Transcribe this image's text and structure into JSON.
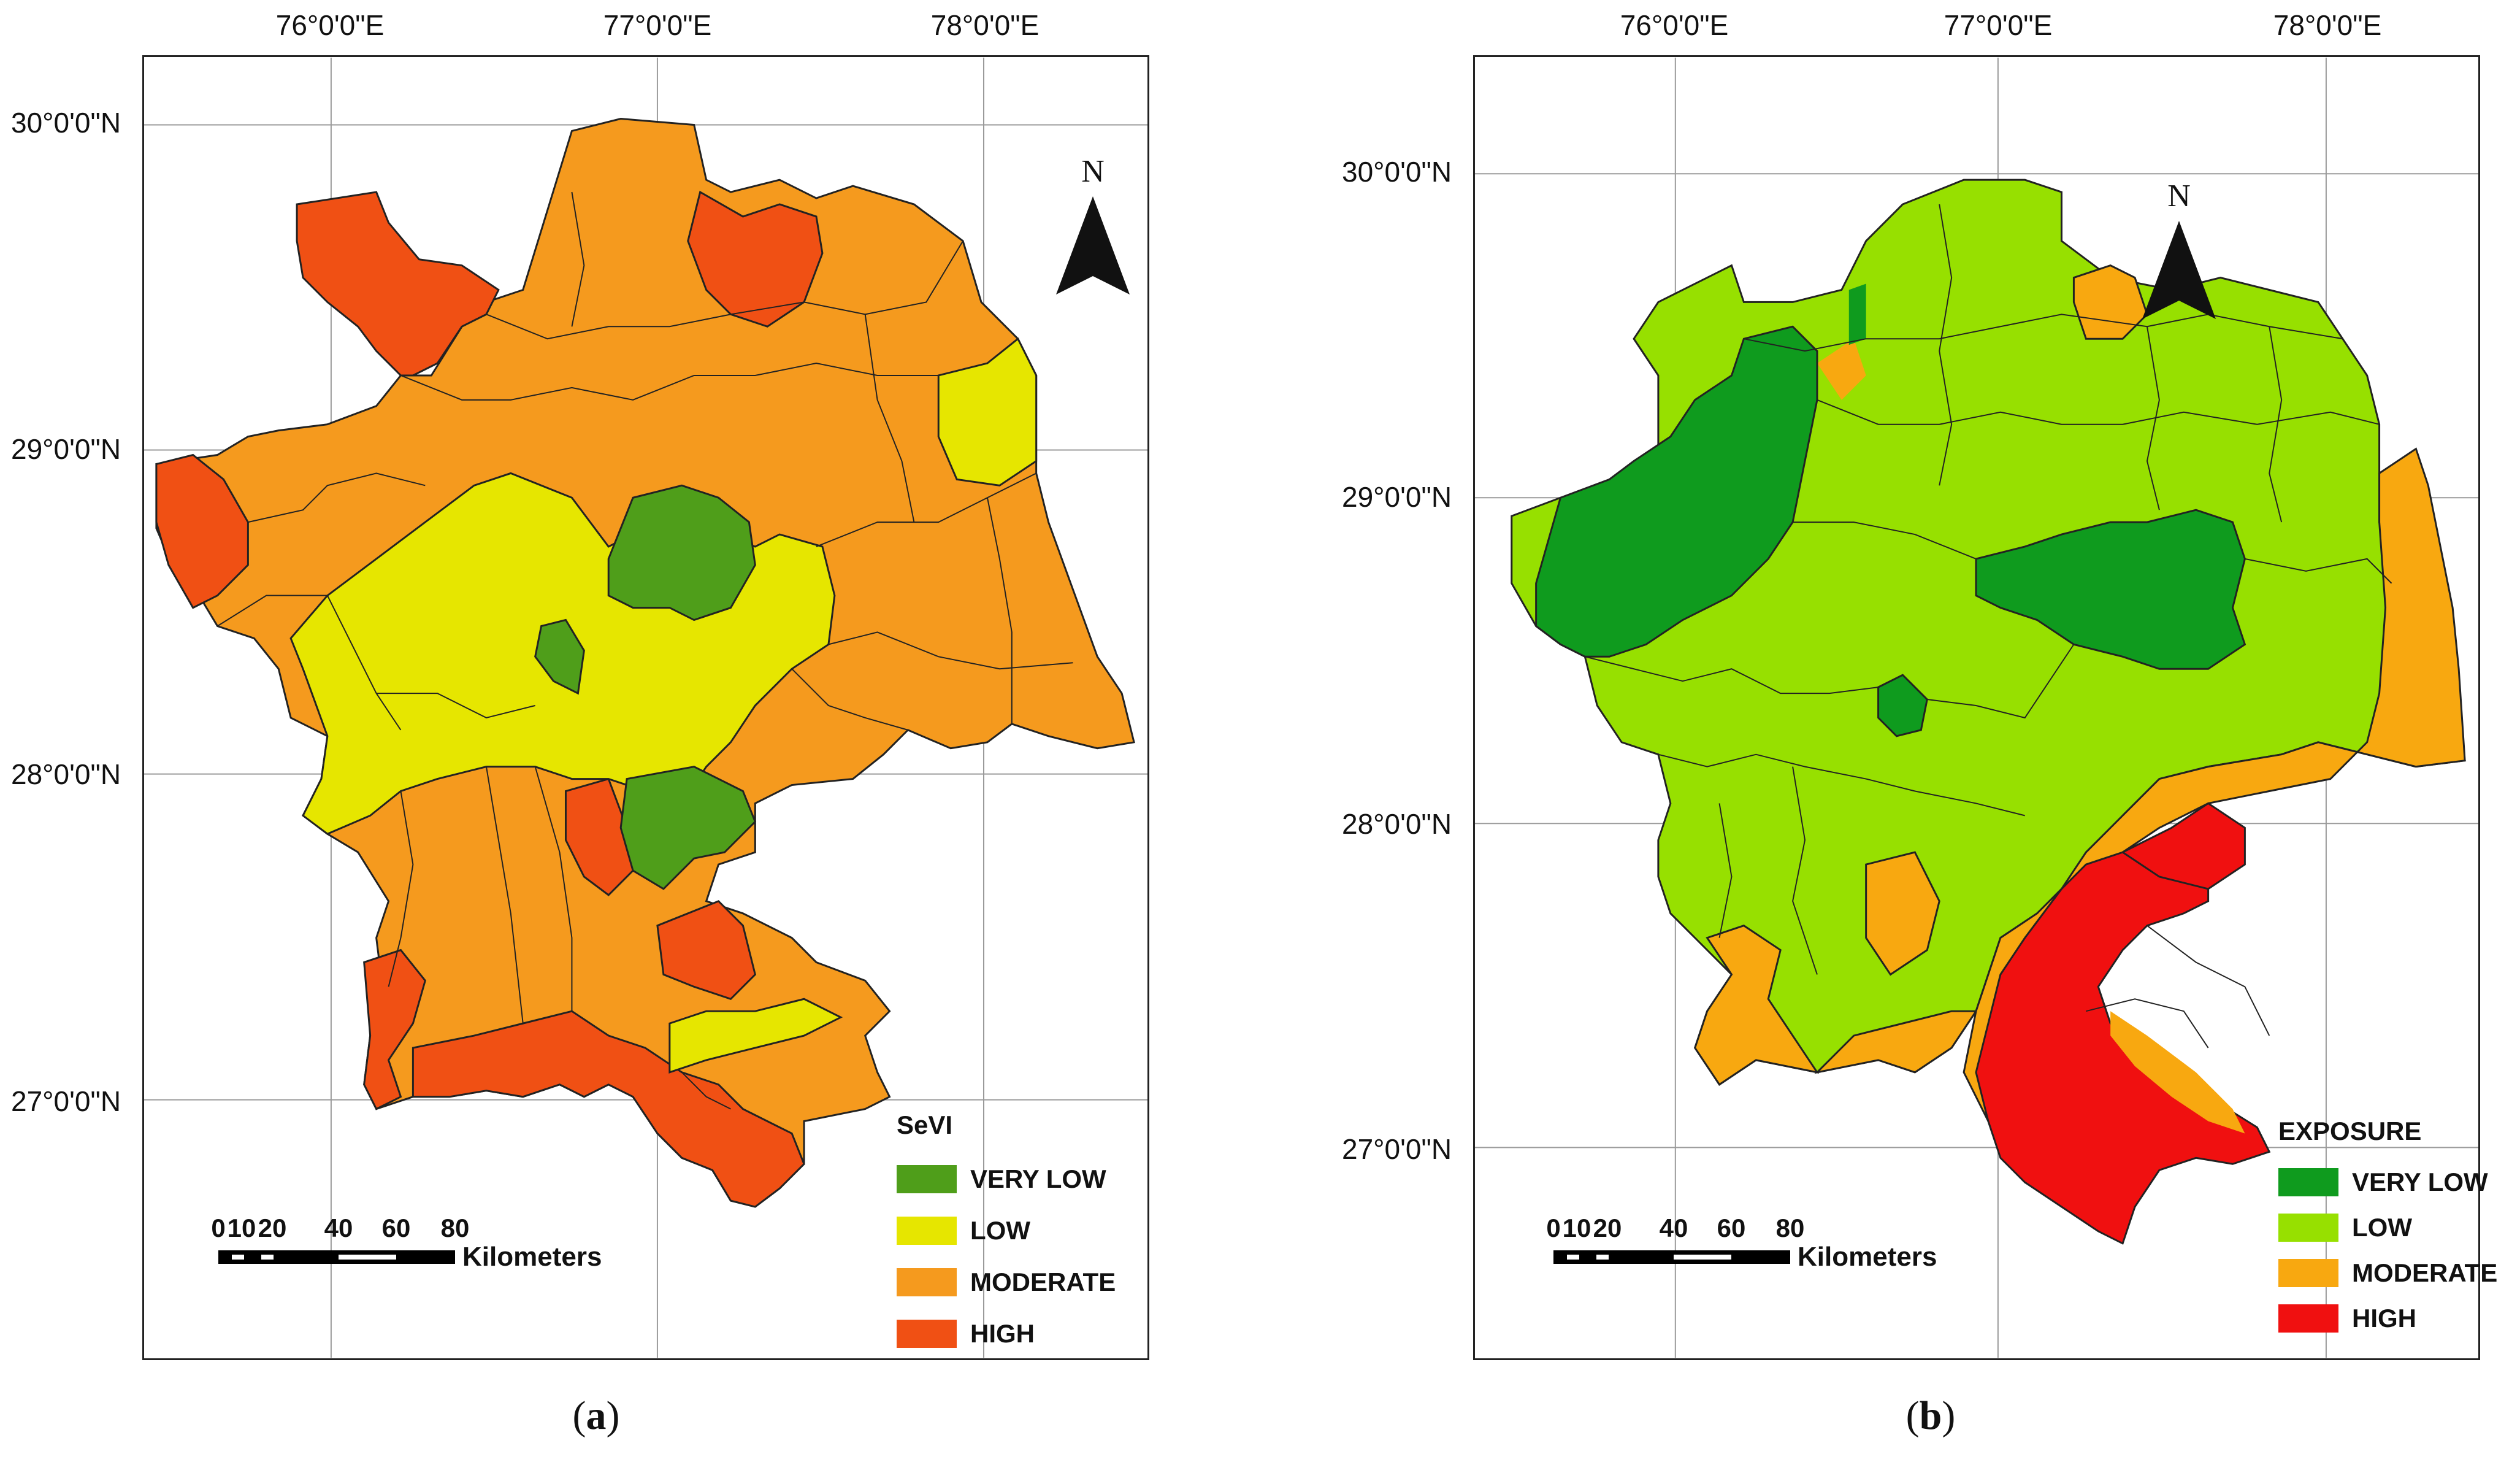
{
  "panels": [
    {
      "caption_label": "a",
      "longitude_labels": [
        "76°0'0\"E",
        "77°0'0\"E",
        "78°0'0\"E"
      ],
      "latitude_labels": [
        "30°0'0\"N",
        "29°0'0\"N",
        "28°0'0\"N",
        "27°0'0\"N"
      ],
      "north_label": "N",
      "scale": {
        "ticks": [
          "0",
          "10",
          "20",
          "40",
          "60",
          "80"
        ],
        "unit": "Kilometers"
      },
      "legend": {
        "title": "SeVI",
        "classes": [
          {
            "label": "VERY LOW",
            "color": "#4f9e1a"
          },
          {
            "label": "LOW",
            "color": "#e6e600"
          },
          {
            "label": "MODERATE",
            "color": "#f59a1e"
          },
          {
            "label": "HIGH",
            "color": "#f05014"
          }
        ]
      }
    },
    {
      "caption_label": "b",
      "longitude_labels": [
        "76°0'0\"E",
        "77°0'0\"E",
        "78°0'0\"E"
      ],
      "latitude_labels": [
        "30°0'0\"N",
        "29°0'0\"N",
        "28°0'0\"N",
        "27°0'0\"N"
      ],
      "north_label": "N",
      "scale": {
        "ticks": [
          "0",
          "10",
          "20",
          "40",
          "60",
          "80"
        ],
        "unit": "Kilometers"
      },
      "legend": {
        "title": "EXPOSURE",
        "classes": [
          {
            "label": "VERY LOW",
            "color": "#0f9b1e"
          },
          {
            "label": "LOW",
            "color": "#97e000"
          },
          {
            "label": "MODERATE",
            "color": "#f8a810"
          },
          {
            "label": "HIGH",
            "color": "#f01010"
          }
        ]
      }
    }
  ]
}
